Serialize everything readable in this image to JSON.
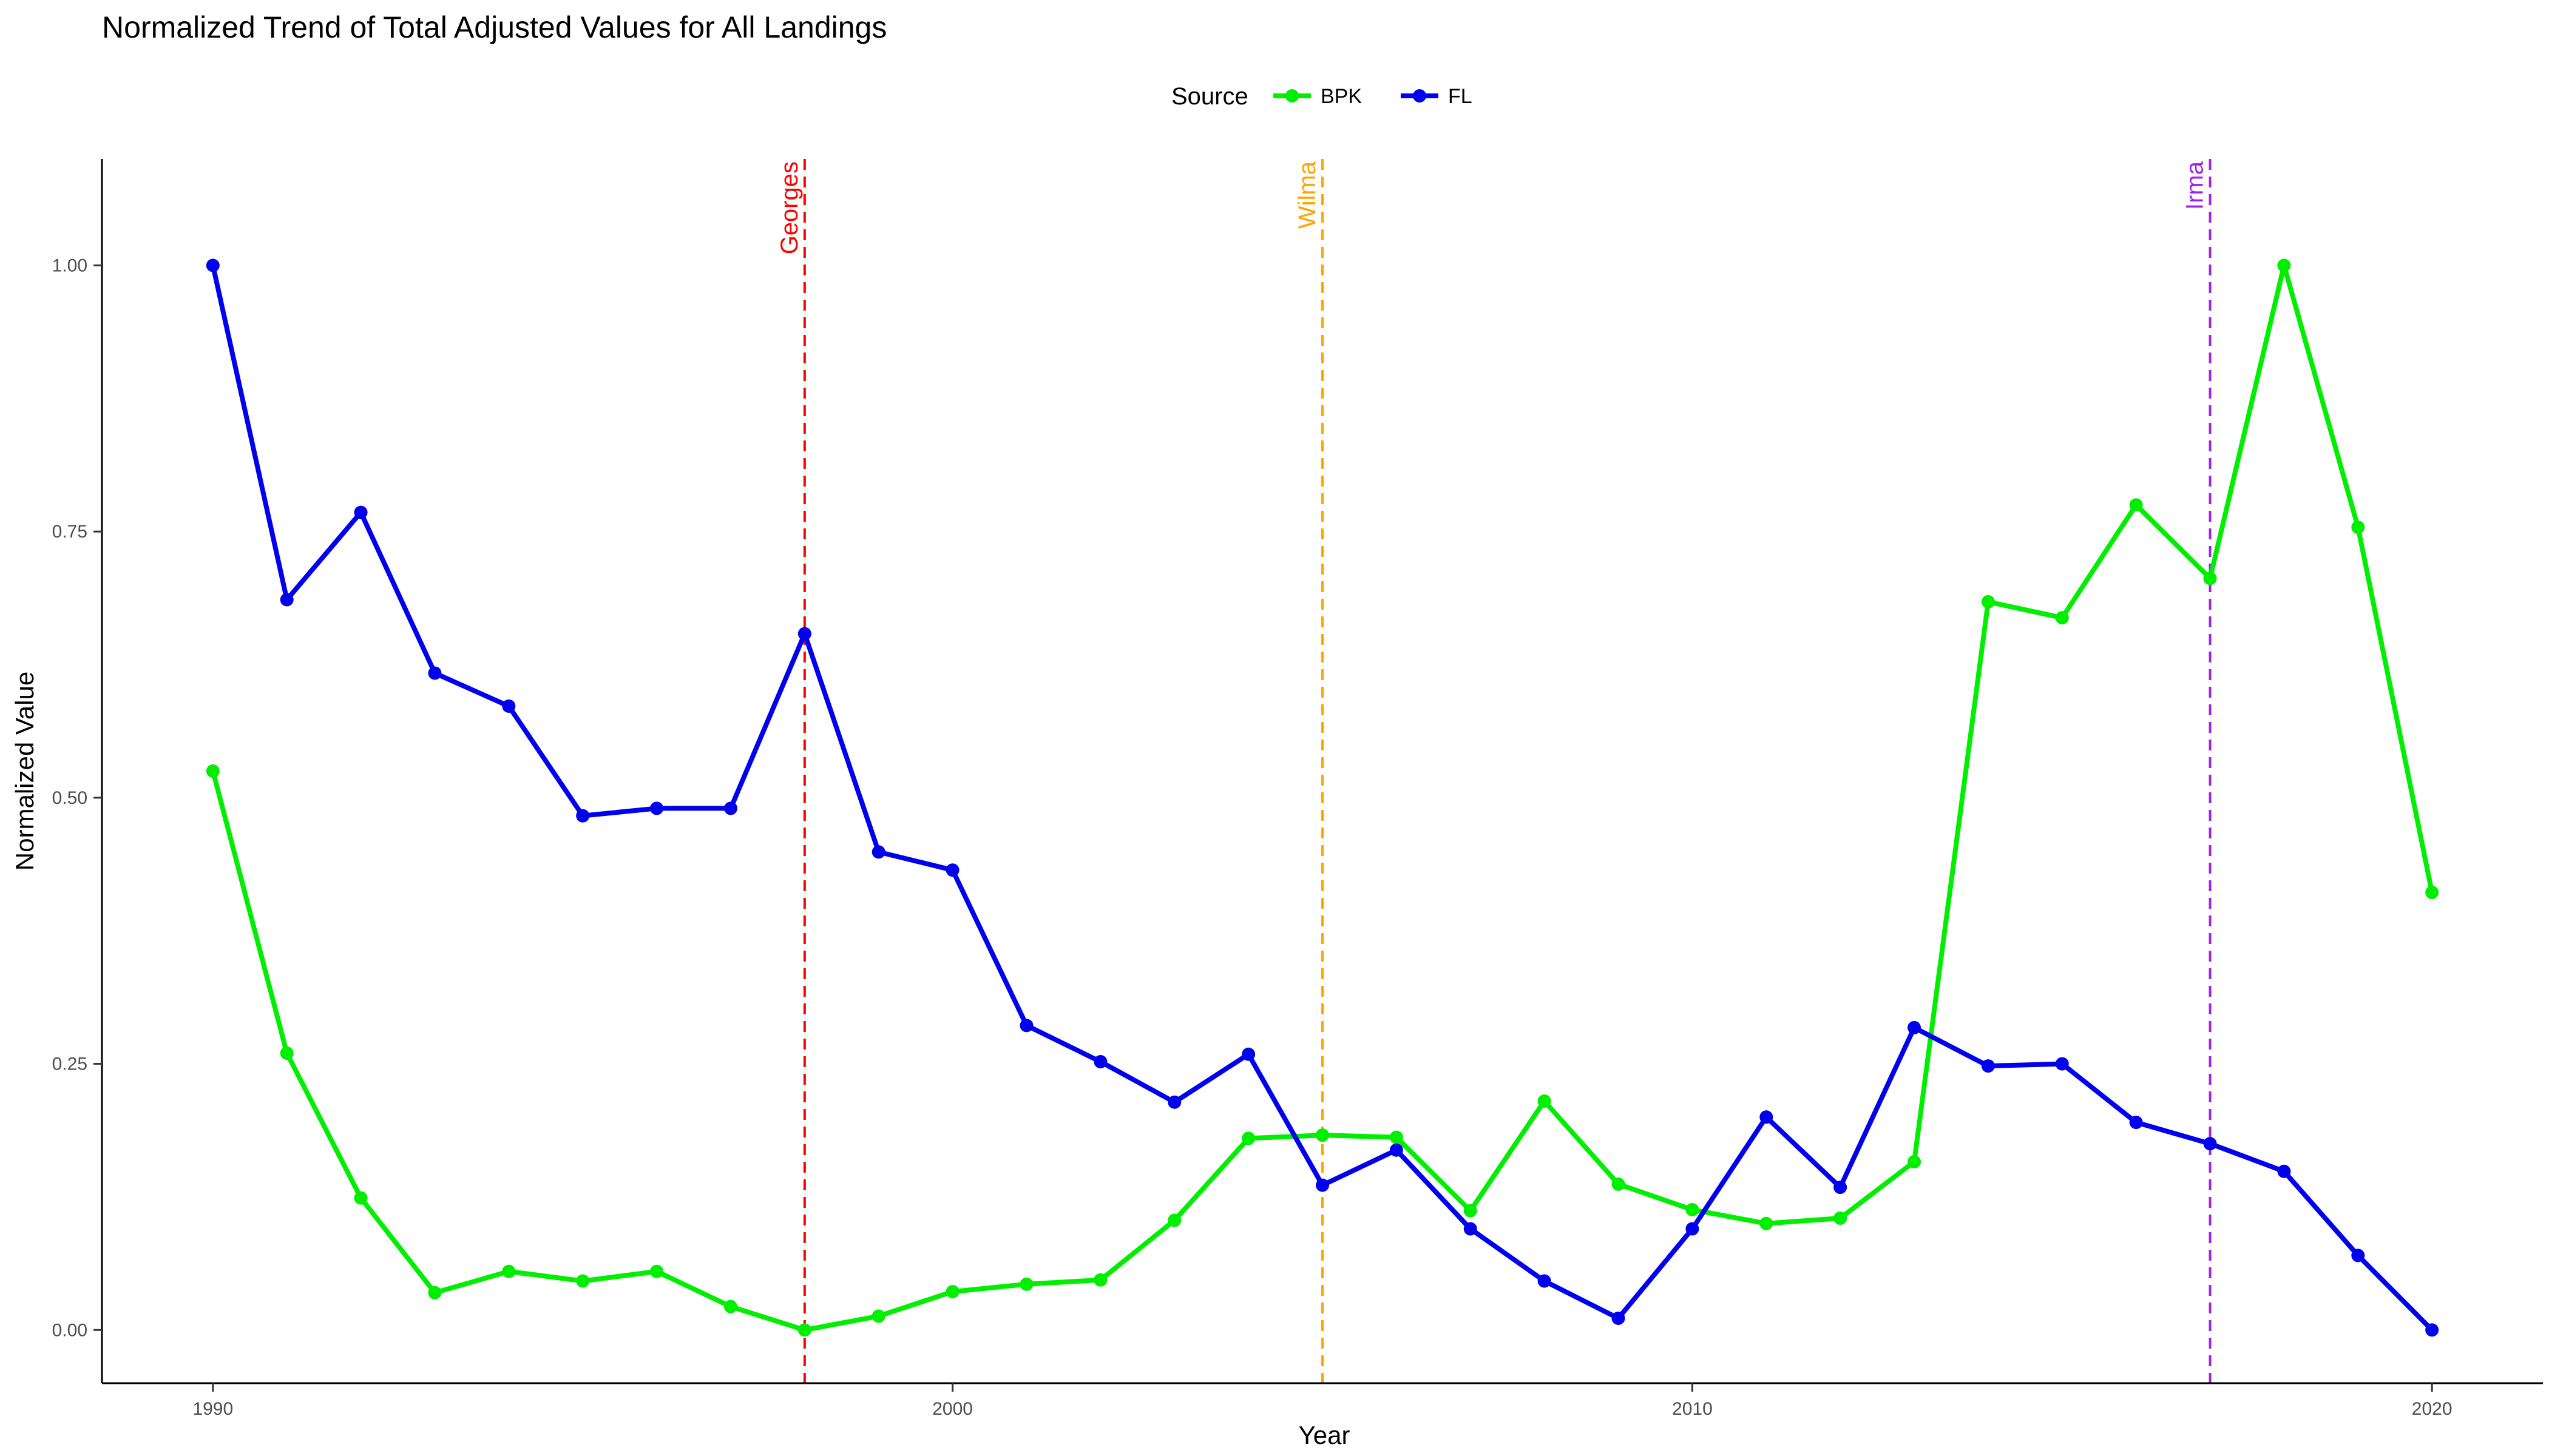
{
  "chart_data": {
    "type": "line",
    "title": "Normalized Trend of Total Adjusted Values for All Landings",
    "xlabel": "Year",
    "ylabel": "Normalized Value",
    "xlim": [
      1988.5,
      2021.5
    ],
    "ylim": [
      -0.05,
      1.1
    ],
    "x_ticks": [
      1990,
      2000,
      2010,
      2020
    ],
    "y_ticks": [
      0.0,
      0.25,
      0.5,
      0.75,
      1.0
    ],
    "y_tick_labels": [
      "0.00",
      "0.25",
      "0.50",
      "0.75",
      "1.00"
    ],
    "grid": false,
    "legend": {
      "title": "Source",
      "position": "top"
    },
    "x": [
      1990,
      1991,
      1992,
      1993,
      1994,
      1995,
      1996,
      1997,
      1998,
      1999,
      2000,
      2001,
      2002,
      2003,
      2004,
      2005,
      2006,
      2007,
      2008,
      2009,
      2010,
      2011,
      2012,
      2013,
      2014,
      2015,
      2016,
      2017,
      2018,
      2019,
      2020
    ],
    "series": [
      {
        "name": "BPK",
        "color": "#00ee00",
        "values": [
          0.525,
          0.26,
          0.124,
          0.035,
          0.055,
          0.046,
          0.055,
          0.022,
          0.0,
          0.013,
          0.036,
          0.043,
          0.047,
          0.103,
          0.18,
          0.183,
          0.181,
          0.112,
          0.215,
          0.137,
          0.113,
          0.1,
          0.105,
          0.158,
          0.684,
          0.669,
          0.775,
          0.706,
          1.0,
          0.754,
          0.411
        ]
      },
      {
        "name": "FL",
        "color": "#0000ee",
        "values": [
          1.0,
          0.686,
          0.768,
          0.617,
          0.586,
          0.483,
          0.49,
          0.49,
          0.654,
          0.449,
          0.432,
          0.286,
          0.252,
          0.214,
          0.259,
          0.136,
          0.169,
          0.095,
          0.046,
          0.011,
          0.095,
          0.2,
          0.134,
          0.284,
          0.248,
          0.25,
          0.195,
          0.175,
          0.149,
          0.07,
          0.0
        ]
      }
    ],
    "annotations": [
      {
        "label": "Georges",
        "x": 1998,
        "color": "#ff0000"
      },
      {
        "label": "Wilma",
        "x": 2005,
        "color": "#ffa500"
      },
      {
        "label": "Irma",
        "x": 2017,
        "color": "#a020f0"
      }
    ]
  }
}
